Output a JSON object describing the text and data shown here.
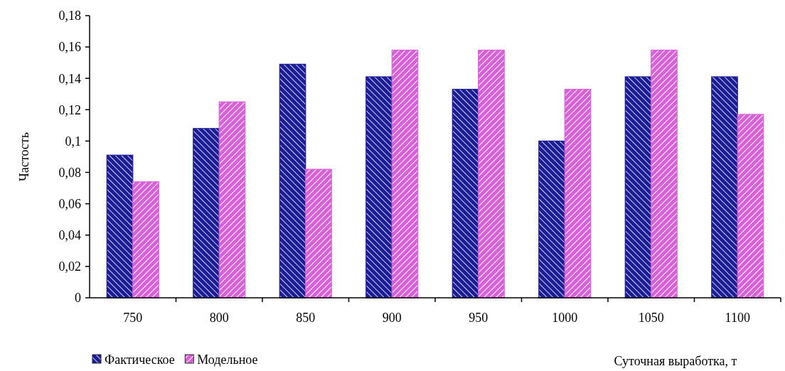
{
  "chart_data": {
    "type": "bar",
    "xlabel": "Суточная выработка, т",
    "ylabel": "Частость",
    "categories": [
      "750",
      "800",
      "850",
      "900",
      "950",
      "1000",
      "1050",
      "1100"
    ],
    "series": [
      {
        "name": "Фактическое",
        "color": "#1c1c96",
        "values": [
          0.091,
          0.108,
          0.149,
          0.141,
          0.133,
          0.1,
          0.141,
          0.141
        ]
      },
      {
        "name": "Модельное",
        "color": "#d860d8",
        "values": [
          0.074,
          0.125,
          0.082,
          0.158,
          0.158,
          0.133,
          0.158,
          0.117
        ]
      }
    ],
    "ylim": [
      0,
      0.18
    ],
    "yticks": [
      0,
      {
        "value": 0.02,
        "label": "0,02"
      },
      {
        "value": 0.04,
        "label": "0,04"
      },
      {
        "value": 0.06,
        "label": "0,06"
      },
      {
        "value": 0.08,
        "label": "0,08"
      },
      {
        "value": 0.1,
        "label": "0,1"
      },
      {
        "value": 0.12,
        "label": "0,12"
      },
      {
        "value": 0.14,
        "label": "0,14"
      },
      {
        "value": 0.16,
        "label": "0,16"
      },
      {
        "value": 0.18,
        "label": "0,18"
      }
    ],
    "grid": false,
    "legend": "bottom left"
  }
}
